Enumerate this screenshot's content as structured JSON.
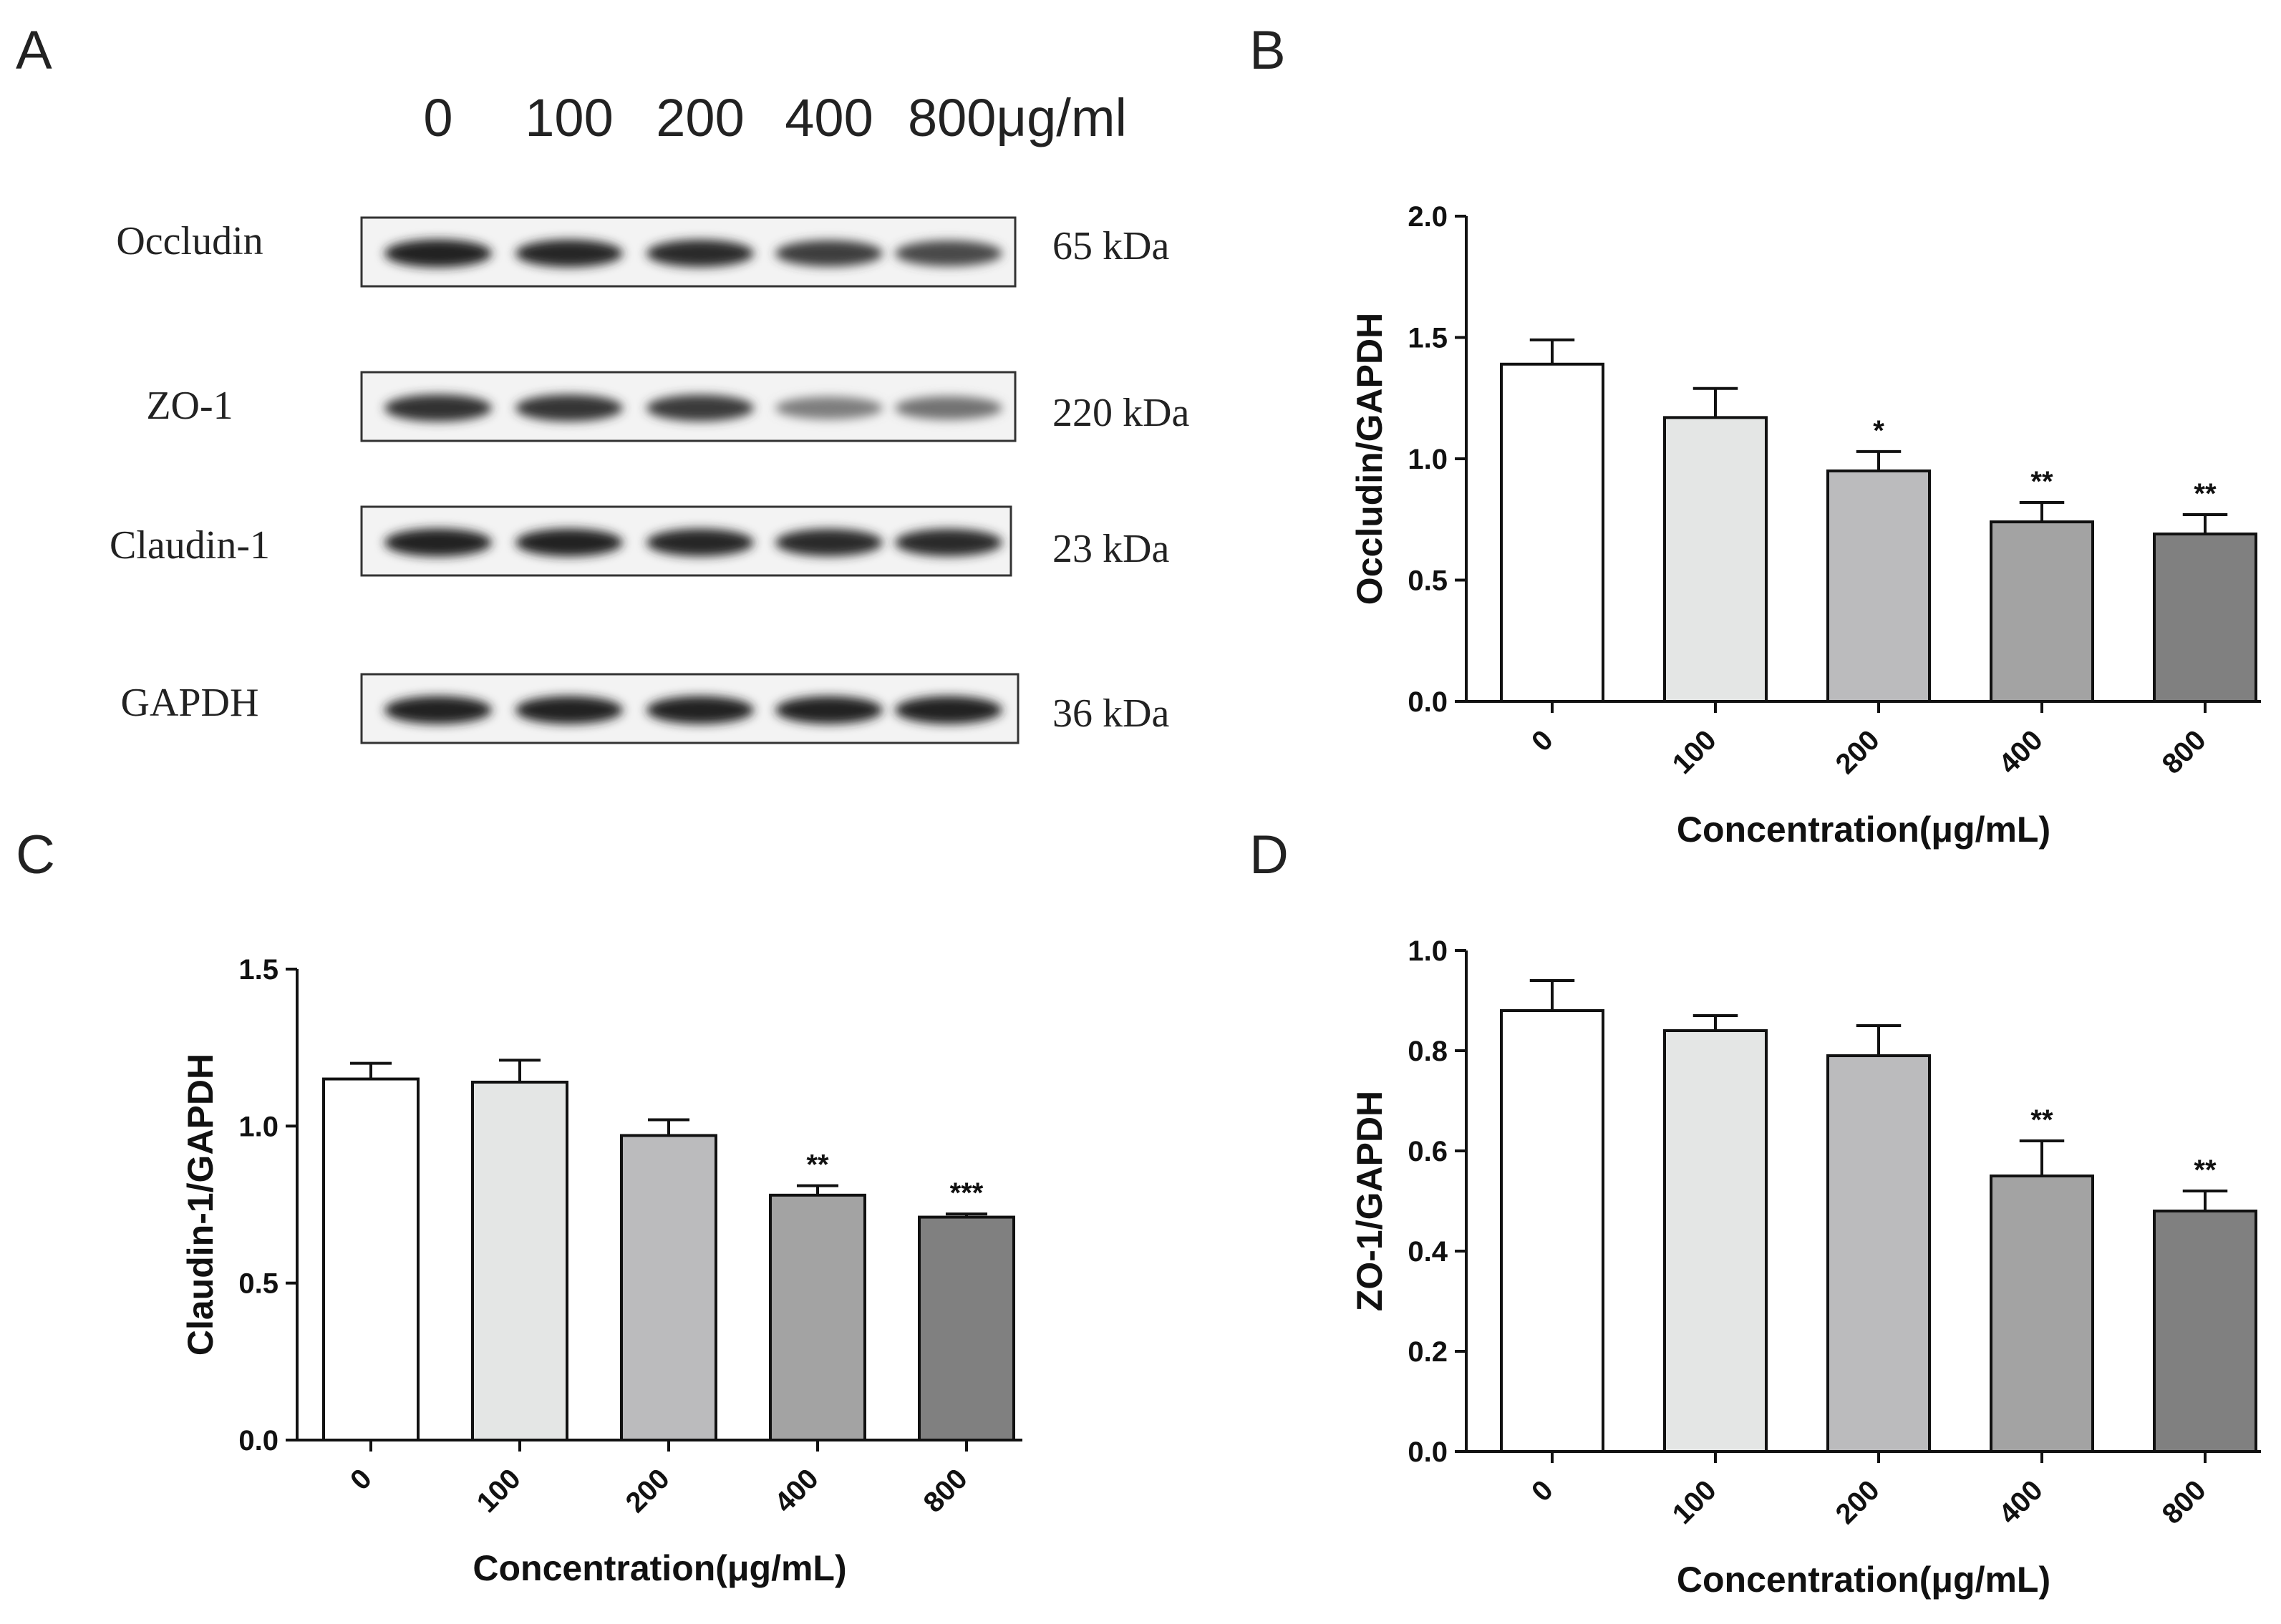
{
  "figure": {
    "panel_a": {
      "letter": "A",
      "lane_labels": [
        "0",
        "100",
        "200",
        "400",
        "800μg/ml"
      ],
      "blots": [
        {
          "protein": "Occludin",
          "size": "65 kDa",
          "intensities": [
            0.95,
            0.92,
            0.9,
            0.82,
            0.78
          ]
        },
        {
          "protein": "ZO-1",
          "size": "220 kDa",
          "intensities": [
            0.88,
            0.86,
            0.84,
            0.55,
            0.6
          ]
        },
        {
          "protein": "Claudin-1",
          "size": "23 kDa",
          "intensities": [
            0.95,
            0.93,
            0.92,
            0.9,
            0.9
          ]
        },
        {
          "protein": "GAPDH",
          "size": "36 kDa",
          "intensities": [
            0.95,
            0.95,
            0.95,
            0.93,
            0.94
          ]
        }
      ]
    }
  },
  "chart_data": [
    {
      "panel": "B",
      "type": "bar",
      "categories": [
        "0",
        "100",
        "200",
        "400",
        "800"
      ],
      "values": [
        1.39,
        1.17,
        0.95,
        0.74,
        0.69
      ],
      "errors": [
        0.1,
        0.12,
        0.08,
        0.08,
        0.08
      ],
      "significance": [
        "",
        "",
        "*",
        "**",
        "**"
      ],
      "colors": [
        "#ffffff",
        "#e4e6e5",
        "#bbbbbd",
        "#a3a3a3",
        "#808080"
      ],
      "xlabel": "Concentration(μg/mL)",
      "ylabel": "Occludin/GAPDH",
      "ylim": [
        0,
        2.0
      ],
      "yticks": [
        "0.0",
        "0.5",
        "1.0",
        "1.5",
        "2.0"
      ]
    },
    {
      "panel": "C",
      "type": "bar",
      "categories": [
        "0",
        "100",
        "200",
        "400",
        "800"
      ],
      "values": [
        1.15,
        1.14,
        0.97,
        0.78,
        0.71
      ],
      "errors": [
        0.05,
        0.07,
        0.05,
        0.03,
        0.01
      ],
      "significance": [
        "",
        "",
        "",
        "**",
        "***"
      ],
      "colors": [
        "#ffffff",
        "#e4e6e5",
        "#bbbbbd",
        "#a3a3a3",
        "#808080"
      ],
      "xlabel": "Concentration(μg/mL)",
      "ylabel": "Claudin-1/GAPDH",
      "ylim": [
        0,
        1.5
      ],
      "yticks": [
        "0.0",
        "0.5",
        "1.0",
        "1.5"
      ]
    },
    {
      "panel": "D",
      "type": "bar",
      "categories": [
        "0",
        "100",
        "200",
        "400",
        "800"
      ],
      "values": [
        0.88,
        0.84,
        0.79,
        0.55,
        0.48
      ],
      "errors": [
        0.06,
        0.03,
        0.06,
        0.07,
        0.04
      ],
      "significance": [
        "",
        "",
        "",
        "**",
        "**"
      ],
      "colors": [
        "#ffffff",
        "#e4e6e5",
        "#bbbbbd",
        "#a3a3a3",
        "#808080"
      ],
      "xlabel": "Concentration(μg/mL)",
      "ylabel": "ZO-1/GAPDH",
      "ylim": [
        0,
        1.0
      ],
      "yticks": [
        "0.0",
        "0.2",
        "0.4",
        "0.6",
        "0.8",
        "1.0"
      ]
    }
  ]
}
